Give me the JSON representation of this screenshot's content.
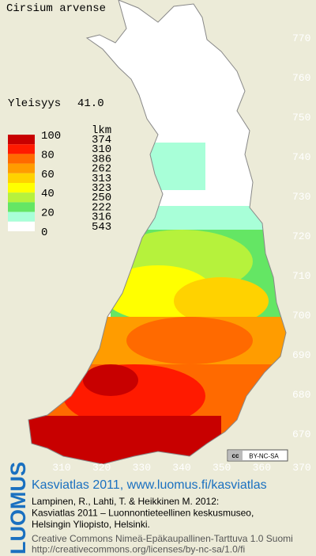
{
  "title": "Cirsium arvense",
  "frequency": {
    "label": "Yleisyys",
    "value": "41.0"
  },
  "legend": {
    "scale_labels": [
      100,
      80,
      60,
      40,
      20,
      0
    ],
    "count_header": "lkm",
    "counts": [
      374,
      310,
      386,
      262,
      313,
      323,
      250,
      222,
      316,
      543
    ],
    "colors": [
      "#c80000",
      "#ff1a00",
      "#ff6a00",
      "#ff9c00",
      "#ffd200",
      "#ffff00",
      "#b6f23c",
      "#64e664",
      "#a8ffd8",
      "#ffffff"
    ]
  },
  "northing_ticks": [
    770,
    760,
    750,
    740,
    730,
    720,
    710,
    700,
    690,
    680,
    670
  ],
  "easting_ticks": [
    310,
    320,
    330,
    340,
    350,
    360,
    370
  ],
  "license_badge": "BY-NC-SA",
  "footer": {
    "logo": "LUOMUS",
    "heading": "Kasviatlas 2011, www.luomus.fi/kasviatlas",
    "citation": [
      "Lampinen, R., Lahti, T. & Heikkinen M. 2012:",
      "Kasviatlas 2011 – Luonnontieteellinen keskusmuseo,",
      "Helsingin Yliopisto, Helsinki."
    ],
    "license": [
      "Creative Commons Nimeä-Epäkaupallinen-Tarttuva 1.0 Suomi",
      "http://creativecommons.org/licenses/by-nc-sa/1.0/fi"
    ]
  }
}
